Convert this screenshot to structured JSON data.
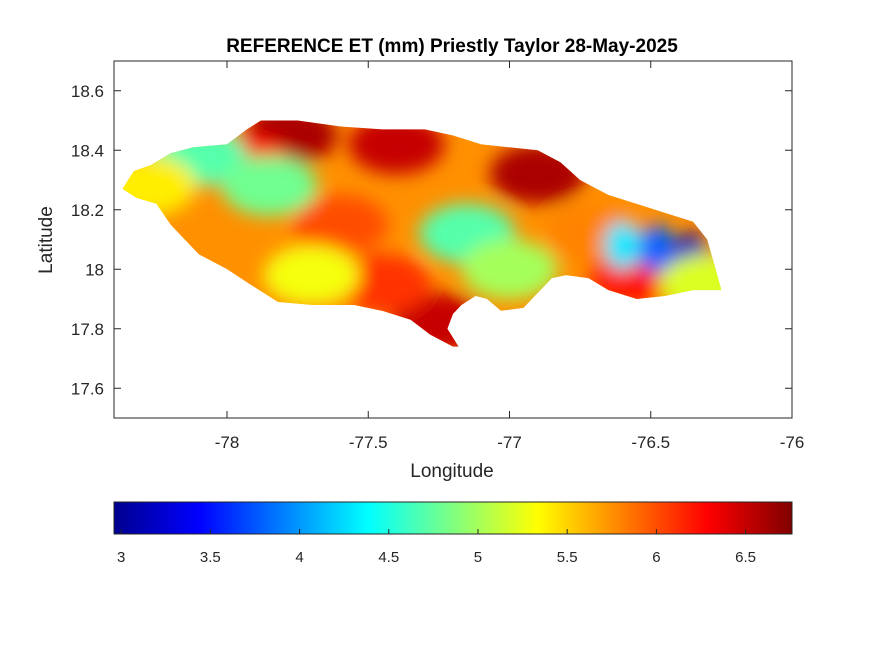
{
  "chart_data": {
    "type": "heatmap",
    "title": "REFERENCE ET (mm) Priestly Taylor 28-May-2025",
    "xlabel": "Longitude",
    "ylabel": "Latitude",
    "xlim": [
      -78.4,
      -76
    ],
    "ylim": [
      17.5,
      18.7
    ],
    "xticks": [
      -78,
      -77.5,
      -77,
      -76.5,
      -76
    ],
    "xtick_labels": [
      "-78",
      "-77.5",
      "-77",
      "-76.5",
      "-76"
    ],
    "yticks": [
      17.6,
      17.8,
      18,
      18.2,
      18.4,
      18.6
    ],
    "ytick_labels": [
      "17.6",
      "17.8",
      "18",
      "18.2",
      "18.4",
      "18.6"
    ],
    "colorbar": {
      "colormap": "jet",
      "range": [
        2.96,
        6.76
      ],
      "ticks": [
        3,
        3.5,
        4,
        4.5,
        5,
        5.5,
        6,
        6.5
      ],
      "tick_labels": [
        "3",
        "3.5",
        "4",
        "4.5",
        "5",
        "5.5",
        "6",
        "6.5"
      ],
      "location": "bottom"
    },
    "colors": {
      "jet": [
        "#00008f",
        "#0000ff",
        "#0080ff",
        "#00ffff",
        "#80ff80",
        "#ffff00",
        "#ff8000",
        "#ff0000",
        "#800000"
      ]
    },
    "island_outline": [
      [
        -78.37,
        18.27
      ],
      [
        -78.33,
        18.33
      ],
      [
        -78.27,
        18.35
      ],
      [
        -78.2,
        18.39
      ],
      [
        -78.12,
        18.41
      ],
      [
        -78.0,
        18.42
      ],
      [
        -77.93,
        18.47
      ],
      [
        -77.88,
        18.5
      ],
      [
        -77.75,
        18.5
      ],
      [
        -77.6,
        18.48
      ],
      [
        -77.45,
        18.47
      ],
      [
        -77.3,
        18.47
      ],
      [
        -77.2,
        18.45
      ],
      [
        -77.1,
        18.42
      ],
      [
        -77.0,
        18.41
      ],
      [
        -76.9,
        18.4
      ],
      [
        -76.82,
        18.36
      ],
      [
        -76.75,
        18.3
      ],
      [
        -76.65,
        18.25
      ],
      [
        -76.55,
        18.22
      ],
      [
        -76.45,
        18.19
      ],
      [
        -76.35,
        18.16
      ],
      [
        -76.3,
        18.1
      ],
      [
        -76.27,
        18.0
      ],
      [
        -76.25,
        17.93
      ],
      [
        -76.35,
        17.93
      ],
      [
        -76.45,
        17.91
      ],
      [
        -76.55,
        17.9
      ],
      [
        -76.65,
        17.93
      ],
      [
        -76.72,
        17.97
      ],
      [
        -76.8,
        17.98
      ],
      [
        -76.85,
        17.97
      ],
      [
        -76.9,
        17.92
      ],
      [
        -76.95,
        17.87
      ],
      [
        -77.03,
        17.86
      ],
      [
        -77.08,
        17.9
      ],
      [
        -77.12,
        17.91
      ],
      [
        -77.17,
        17.88
      ],
      [
        -77.2,
        17.85
      ],
      [
        -77.22,
        17.8
      ],
      [
        -77.18,
        17.74
      ],
      [
        -77.2,
        17.74
      ],
      [
        -77.28,
        17.78
      ],
      [
        -77.35,
        17.83
      ],
      [
        -77.45,
        17.86
      ],
      [
        -77.55,
        17.88
      ],
      [
        -77.7,
        17.88
      ],
      [
        -77.82,
        17.89
      ],
      [
        -77.92,
        17.95
      ],
      [
        -78.0,
        18.0
      ],
      [
        -78.1,
        18.05
      ],
      [
        -78.2,
        18.15
      ],
      [
        -78.25,
        18.22
      ],
      [
        -78.32,
        18.24
      ]
    ],
    "et_zones": [
      {
        "lon": -77.78,
        "lat": 18.45,
        "value": 6.6
      },
      {
        "lon": -77.4,
        "lat": 18.42,
        "value": 6.5
      },
      {
        "lon": -76.9,
        "lat": 18.32,
        "value": 6.6
      },
      {
        "lon": -77.25,
        "lat": 17.82,
        "value": 6.5
      },
      {
        "lon": -77.95,
        "lat": 18.36,
        "value": 6.2
      },
      {
        "lon": -77.6,
        "lat": 18.15,
        "value": 6.0
      },
      {
        "lon": -77.45,
        "lat": 17.95,
        "value": 6.1
      },
      {
        "lon": -76.55,
        "lat": 17.98,
        "value": 6.2
      },
      {
        "lon": -76.7,
        "lat": 18.12,
        "value": 5.8
      },
      {
        "lon": -78.1,
        "lat": 18.38,
        "value": 4.7
      },
      {
        "lon": -77.85,
        "lat": 18.28,
        "value": 4.8
      },
      {
        "lon": -77.15,
        "lat": 18.12,
        "value": 4.7
      },
      {
        "lon": -77.0,
        "lat": 18.0,
        "value": 5.0
      },
      {
        "lon": -78.28,
        "lat": 18.28,
        "value": 5.4
      },
      {
        "lon": -77.7,
        "lat": 17.98,
        "value": 5.3
      },
      {
        "lon": -76.48,
        "lat": 18.07,
        "value": 3.8
      },
      {
        "lon": -76.36,
        "lat": 18.04,
        "value": 3.2
      },
      {
        "lon": -76.6,
        "lat": 18.08,
        "value": 4.3
      },
      {
        "lon": -76.3,
        "lat": 17.95,
        "value": 5.2
      }
    ]
  }
}
